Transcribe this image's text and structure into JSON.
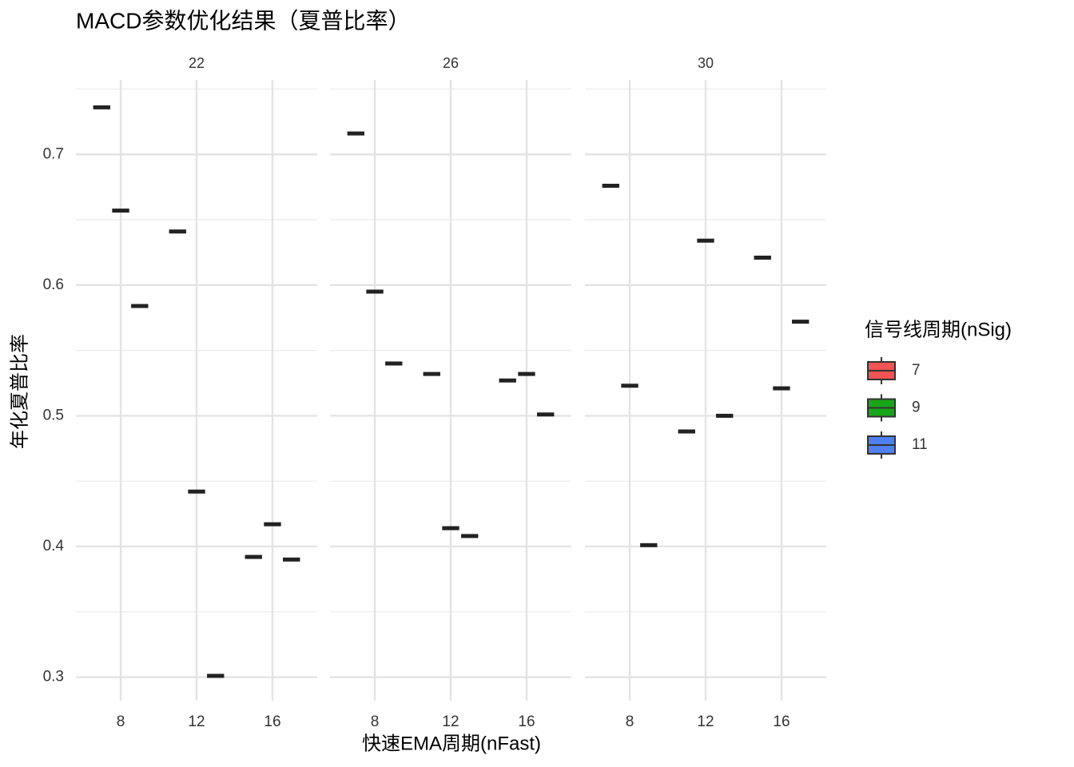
{
  "chart_data": {
    "type": "box",
    "title": "MACD参数优化结果（夏普比率）",
    "x_label": "快速EMA周期(nFast)",
    "y_label": "年化夏普比率",
    "legend_title": "信号线周期(nSig)",
    "x": [
      8,
      12,
      16
    ],
    "xlim": [
      5.64,
      18.36
    ],
    "xticks": [
      8,
      12,
      16
    ],
    "ylim": [
      0.282,
      0.757
    ],
    "yticks": [
      0.3,
      0.4,
      0.5,
      0.6,
      0.7
    ],
    "yminor_ticks": [
      0.35,
      0.45,
      0.55,
      0.65,
      0.75
    ],
    "grid": true,
    "box_color": "#222222",
    "series": [
      {
        "name": "7",
        "color": "#f05454"
      },
      {
        "name": "9",
        "color": "#19a519"
      },
      {
        "name": "11",
        "color": "#4f7ff0"
      }
    ],
    "facets": [
      {
        "label": "22",
        "values": [
          [
            0.736,
            0.641,
            0.392
          ],
          [
            0.657,
            0.442,
            0.417
          ],
          [
            0.584,
            0.301,
            0.39
          ]
        ]
      },
      {
        "label": "26",
        "values": [
          [
            0.716,
            0.532,
            0.527
          ],
          [
            0.595,
            0.414,
            0.532
          ],
          [
            0.54,
            0.408,
            0.501
          ]
        ]
      },
      {
        "label": "30",
        "values": [
          [
            0.676,
            0.488,
            0.621
          ],
          [
            0.523,
            0.634,
            0.521
          ],
          [
            0.401,
            0.5,
            0.572
          ]
        ]
      }
    ]
  }
}
